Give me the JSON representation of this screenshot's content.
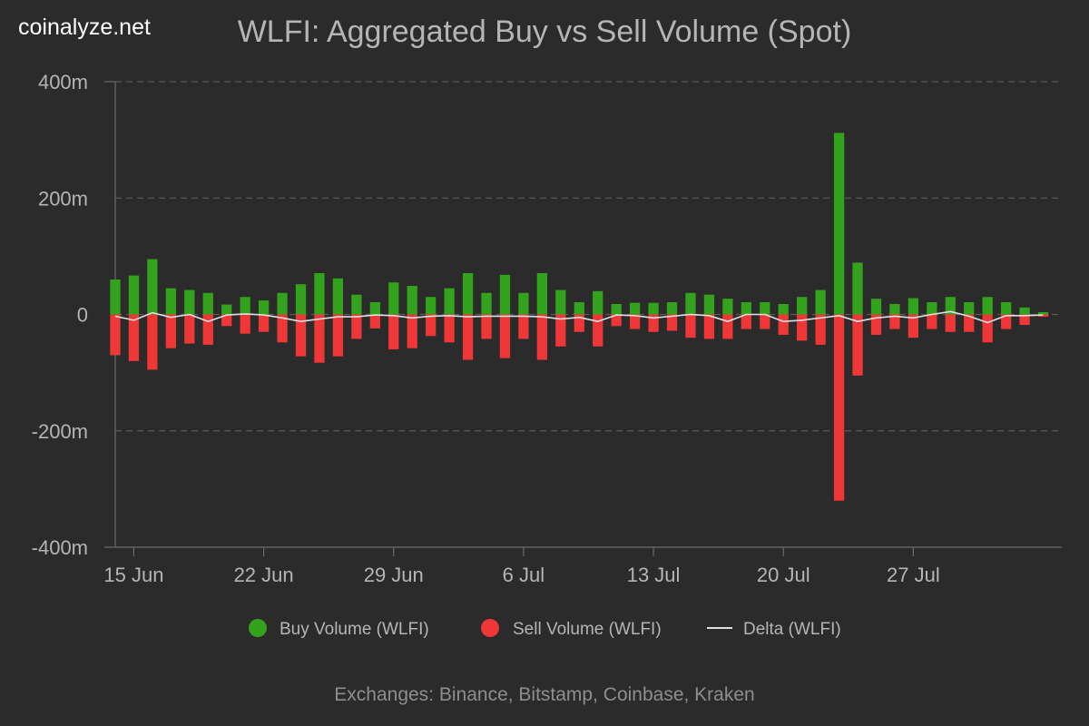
{
  "brand": "coinalyze.net",
  "title": "WLFI: Aggregated Buy vs Sell Volume (Spot)",
  "footer": "Exchanges: Binance, Bitstamp, Coinbase, Kraken",
  "colors": {
    "background": "#2b2b2b",
    "buy": "#33a31e",
    "sell": "#f03737",
    "delta": "#e0e0e0",
    "grid": "#5a5a5a",
    "text": "#b5b5b5"
  },
  "chart_data": {
    "type": "bar",
    "x_axis": {
      "type": "date",
      "start": "2025-06-14",
      "end": "2025-08-04",
      "tick_dates": [
        "2025-06-15",
        "2025-06-22",
        "2025-06-29",
        "2025-07-06",
        "2025-07-13",
        "2025-07-20",
        "2025-07-27"
      ],
      "tick_labels": [
        "15 Jun",
        "22 Jun",
        "29 Jun",
        "6 Jul",
        "13 Jul",
        "20 Jul",
        "27 Jul"
      ]
    },
    "y_axis": {
      "min": -400,
      "max": 400,
      "ticks": [
        400,
        200,
        0,
        -200,
        -400
      ],
      "tick_labels": [
        "400m",
        "200m",
        "0",
        "-200m",
        "-400m"
      ],
      "grid": true,
      "unit": "m"
    },
    "dates": [
      "2025-06-14",
      "2025-06-15",
      "2025-06-16",
      "2025-06-17",
      "2025-06-18",
      "2025-06-19",
      "2025-06-20",
      "2025-06-21",
      "2025-06-22",
      "2025-06-23",
      "2025-06-24",
      "2025-06-25",
      "2025-06-26",
      "2025-06-27",
      "2025-06-28",
      "2025-06-29",
      "2025-06-30",
      "2025-07-01",
      "2025-07-02",
      "2025-07-03",
      "2025-07-04",
      "2025-07-05",
      "2025-07-06",
      "2025-07-07",
      "2025-07-08",
      "2025-07-09",
      "2025-07-10",
      "2025-07-11",
      "2025-07-12",
      "2025-07-13",
      "2025-07-14",
      "2025-07-15",
      "2025-07-16",
      "2025-07-17",
      "2025-07-18",
      "2025-07-19",
      "2025-07-20",
      "2025-07-21",
      "2025-07-22",
      "2025-07-23",
      "2025-07-24",
      "2025-07-25",
      "2025-07-26",
      "2025-07-27",
      "2025-07-28",
      "2025-07-29",
      "2025-07-30",
      "2025-07-31",
      "2025-08-01",
      "2025-08-02",
      "2025-08-03"
    ],
    "series": [
      {
        "name": "Buy Volume (WLFI)",
        "values": [
          60,
          67,
          95,
          45,
          42,
          37,
          17,
          30,
          24,
          37,
          52,
          71,
          62,
          34,
          21,
          55,
          49,
          30,
          45,
          71,
          37,
          68,
          37,
          71,
          42,
          21,
          40,
          18,
          20,
          20,
          21,
          37,
          34,
          27,
          21,
          21,
          18,
          30,
          42,
          312,
          89,
          27,
          18,
          28,
          21,
          30,
          21,
          30,
          21,
          12,
          4
        ]
      },
      {
        "name": "Sell Volume (WLFI)",
        "values": [
          -70,
          -80,
          -95,
          -58,
          -50,
          -52,
          -20,
          -33,
          -30,
          -48,
          -72,
          -83,
          -72,
          -42,
          -24,
          -60,
          -58,
          -37,
          -48,
          -78,
          -42,
          -75,
          -42,
          -78,
          -55,
          -30,
          -55,
          -20,
          -25,
          -30,
          -28,
          -40,
          -42,
          -42,
          -25,
          -25,
          -35,
          -45,
          -52,
          -320,
          -105,
          -35,
          -25,
          -40,
          -25,
          -30,
          -30,
          -48,
          -25,
          -18,
          -4
        ]
      },
      {
        "name": "Delta (WLFI)",
        "values": [
          -3,
          -10,
          3,
          -5,
          0,
          -12,
          -1,
          1,
          -1,
          -6,
          -12,
          -8,
          -4,
          -4,
          -1,
          -2,
          -6,
          -3,
          -2,
          -4,
          -3,
          -3,
          -3,
          -4,
          -8,
          -5,
          -12,
          -1,
          -2,
          -6,
          -3,
          0,
          -2,
          -12,
          0,
          0,
          -12,
          -10,
          -6,
          -2,
          -12,
          -6,
          -3,
          -6,
          0,
          5,
          -3,
          -14,
          -2,
          -2,
          -1
        ]
      }
    ],
    "legend": {
      "position": "bottom",
      "items": [
        {
          "label": "Buy Volume (WLFI)",
          "symbol": "circle"
        },
        {
          "label": "Sell Volume (WLFI)",
          "symbol": "circle"
        },
        {
          "label": "Delta (WLFI)",
          "symbol": "line"
        }
      ]
    }
  }
}
